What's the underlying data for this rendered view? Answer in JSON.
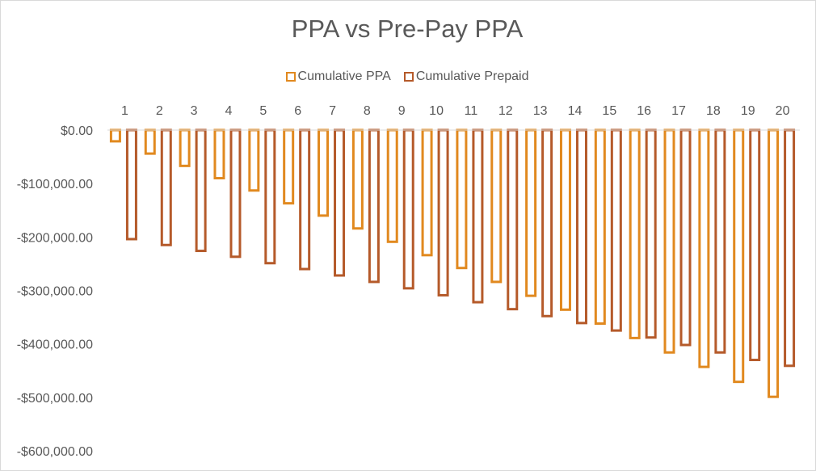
{
  "chart_data": {
    "type": "bar",
    "title": "PPA vs Pre-Pay PPA",
    "categories": [
      "1",
      "2",
      "3",
      "4",
      "5",
      "6",
      "7",
      "8",
      "9",
      "10",
      "11",
      "12",
      "13",
      "14",
      "15",
      "16",
      "17",
      "18",
      "19",
      "20"
    ],
    "series": [
      {
        "name": "Cumulative PPA",
        "color": "#e1891f",
        "values": [
          -21000,
          -44000,
          -67000,
          -90000,
          -113000,
          -137000,
          -160000,
          -184000,
          -209000,
          -234000,
          -258000,
          -284000,
          -310000,
          -336000,
          -362000,
          -389000,
          -416000,
          -443000,
          -471000,
          -499000
        ]
      },
      {
        "name": "Cumulative Prepaid",
        "color": "#b55a2a",
        "values": [
          -204000,
          -215000,
          -226000,
          -237000,
          -249000,
          -260000,
          -272000,
          -284000,
          -296000,
          -309000,
          -322000,
          -335000,
          -348000,
          -361000,
          -375000,
          -388000,
          -402000,
          -416000,
          -430000,
          -441000
        ]
      }
    ],
    "ylim": [
      -600000,
      0
    ],
    "yticks": [
      0,
      -100000,
      -200000,
      -300000,
      -400000,
      -500000,
      -600000
    ],
    "ytick_labels": [
      "$0.00",
      "-$100,000.00",
      "-$200,000.00",
      "-$300,000.00",
      "-$400,000.00",
      "-$500,000.00",
      "-$600,000.00"
    ],
    "xlabel": "",
    "ylabel": "",
    "grid": false,
    "legend_position": "top",
    "x_axis_position": "top"
  }
}
